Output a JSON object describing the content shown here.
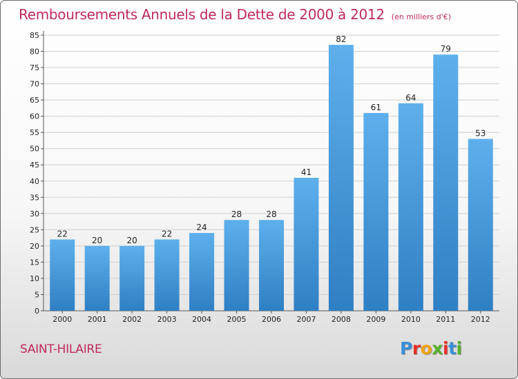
{
  "chart_data": {
    "type": "bar",
    "title": "Remboursements Annuels de la Dette de 2000 à 2012",
    "subtitle": "(en milliers d'€)",
    "categories": [
      "2000",
      "2001",
      "2002",
      "2003",
      "2004",
      "2005",
      "2006",
      "2007",
      "2008",
      "2009",
      "2010",
      "2011",
      "2012"
    ],
    "values": [
      22,
      20,
      20,
      22,
      24,
      28,
      28,
      41,
      82,
      61,
      64,
      79,
      53
    ],
    "ylim": [
      0,
      85
    ],
    "yticks": [
      0,
      5,
      10,
      15,
      20,
      25,
      30,
      35,
      40,
      45,
      50,
      55,
      60,
      65,
      70,
      75,
      80,
      85
    ],
    "grid": true,
    "bar_color": "#4a9ee0",
    "xlabel": "",
    "ylabel": ""
  },
  "location": "SAINT-HILAIRE",
  "logo": {
    "letters": [
      "P",
      "r",
      "o",
      "x",
      "i",
      "t",
      "i"
    ],
    "colors": [
      "#3a8fd6",
      "#e8302a",
      "#f2a20c",
      "#57b02e",
      "#e8302a",
      "#3a8fd6",
      "#57b02e"
    ]
  },
  "colors": {
    "accent": "#c0295c",
    "bar": "#4a9ee0",
    "grid": "#cfcfcf"
  }
}
